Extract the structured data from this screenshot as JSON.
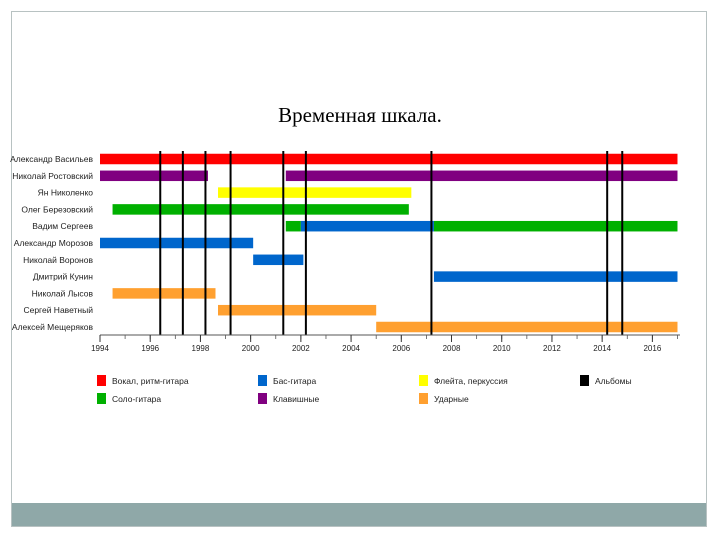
{
  "slide": {
    "title": "Временная шкала."
  },
  "chart_data": {
    "type": "bar",
    "subtype": "gantt-timeline",
    "title": "Временная шкала.",
    "xlim": [
      1994,
      2017.1
    ],
    "x_ticks": [
      1994,
      1996,
      1998,
      2000,
      2002,
      2004,
      2006,
      2008,
      2010,
      2012,
      2014,
      2016
    ],
    "grid": false,
    "legend_position": "bottom",
    "members": [
      "Александр Васильев",
      "Николай Ростовский",
      "Ян Николенко",
      "Олег Березовский",
      "Вадим Сергеев",
      "Александр Морозов",
      "Николай Воронов",
      "Дмитрий Кунин",
      "Николай Лысов",
      "Сергей Наветный",
      "Алексей Мещеряков"
    ],
    "roles": [
      {
        "key": "vocal",
        "name": "Вокал, ритм-гитара",
        "color": "#ff0000"
      },
      {
        "key": "lead",
        "name": "Соло-гитара",
        "color": "#00b000"
      },
      {
        "key": "bass",
        "name": "Бас-гитара",
        "color": "#0066cc"
      },
      {
        "key": "keys",
        "name": "Клавишные",
        "color": "#800080"
      },
      {
        "key": "flute",
        "name": "Флейта, перкуссия",
        "color": "#ffff00"
      },
      {
        "key": "drums",
        "name": "Ударные",
        "color": "#ffa030"
      },
      {
        "key": "albums",
        "name": "Альбомы",
        "color": "#000000"
      }
    ],
    "spans": [
      {
        "member": 0,
        "role": "vocal",
        "start": 1994.0,
        "end": 2017.0
      },
      {
        "member": 1,
        "role": "keys",
        "start": 1994.0,
        "end": 1998.3
      },
      {
        "member": 1,
        "role": "keys",
        "start": 2001.4,
        "end": 2017.0
      },
      {
        "member": 2,
        "role": "flute",
        "start": 1998.7,
        "end": 2006.4
      },
      {
        "member": 3,
        "role": "lead",
        "start": 1994.5,
        "end": 2006.3
      },
      {
        "member": 4,
        "role": "lead",
        "start": 2001.4,
        "end": 2002.0
      },
      {
        "member": 4,
        "role": "bass",
        "start": 2002.0,
        "end": 2007.3
      },
      {
        "member": 4,
        "role": "lead",
        "start": 2007.3,
        "end": 2017.0
      },
      {
        "member": 5,
        "role": "bass",
        "start": 1994.0,
        "end": 2000.1
      },
      {
        "member": 6,
        "role": "bass",
        "start": 2000.1,
        "end": 2002.1
      },
      {
        "member": 7,
        "role": "bass",
        "start": 2007.3,
        "end": 2017.0
      },
      {
        "member": 8,
        "role": "drums",
        "start": 1994.5,
        "end": 1998.6
      },
      {
        "member": 9,
        "role": "drums",
        "start": 1998.7,
        "end": 2005.0
      },
      {
        "member": 10,
        "role": "drums",
        "start": 2005.0,
        "end": 2017.0
      }
    ],
    "albums": [
      1996.4,
      1997.3,
      1998.2,
      1999.2,
      2001.3,
      2002.2,
      2007.2,
      2014.2,
      2014.8
    ]
  }
}
